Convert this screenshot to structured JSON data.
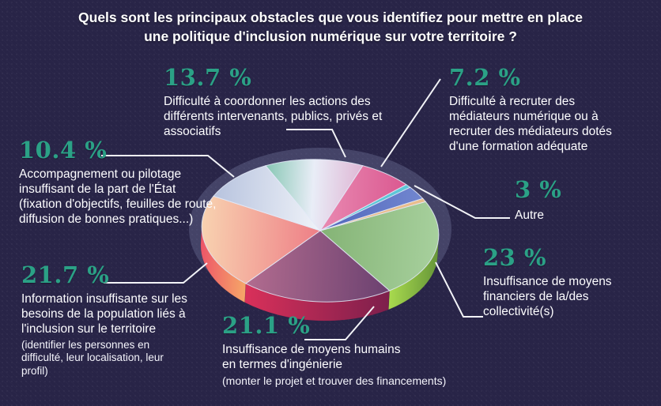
{
  "page": {
    "background_color": "#282447",
    "accent_color": "#2ba186",
    "text_color": "#ffffff",
    "title": "Quels sont les principaux obstacles que vous identifiez pour mettre en place une politique d'inclusion numérique sur votre territoire ?"
  },
  "chart_data": {
    "type": "pie",
    "style": "3d-exploded-callouts",
    "title": "Quels sont les principaux obstacles que vous identifiez pour mettre en place une politique d'inclusion numérique sur votre territoire ?",
    "unit": "%",
    "legend_position": "callout labels around the pie",
    "start_angle_deg": -29,
    "slices": [
      {
        "pct": 23,
        "pct_label": "23 %",
        "label": "Insuffisance de moyens financiers de la/des collectivité(s)",
        "color_top": [
          "#84b375",
          "#a7d09d"
        ],
        "color_side": [
          "#a9da4e",
          "#679739"
        ]
      },
      {
        "pct": 21.1,
        "pct_label": "21.1 %",
        "label": "Insuffisance de moyens humains en termes d'ingénierie",
        "sub": "(monter le projet et trouver des financements)",
        "color_top": [
          "#b26c8f",
          "#6b4170"
        ],
        "color_side": [
          "#d9305a",
          "#7d1f4c"
        ]
      },
      {
        "pct": 21.7,
        "pct_label": "21.7 %",
        "label": "Information insuffisante sur les besoins de la population liés à l'inclusion sur le territoire",
        "sub": "(identifier les personnes en difficulté, leur localisation, leur profil)",
        "color_top": [
          "#f8d2b0",
          "#ee7e86"
        ],
        "color_side": [
          "#ed5568",
          "#f6a768"
        ]
      },
      {
        "pct": 10.4,
        "pct_label": "10.4 %",
        "label": "Accompagnement ou pilotage insuffisant de la part de l'État (fixation d'objectifs, feuilles de route, diffusion de bonnes pratiques...)",
        "color_top": [
          "#b7c3de",
          "#f0f3f9"
        ],
        "color_side": [
          "#9aa6c4",
          "#c7d0e6"
        ]
      },
      {
        "pct": 13.7,
        "pct_label": "13.7 %",
        "label": "Difficulté à coordonner les actions des différents intervenants, publics, privés et associatifs",
        "color_top": [
          "#87c7b4",
          "#e9edf7",
          "#dfb7d5"
        ],
        "color_side": [
          "#6fa898",
          "#c3a0bd"
        ]
      },
      {
        "pct": 7.2,
        "pct_label": "7.2 %",
        "label": "Difficulté à recruter des médiateurs numérique ou à recruter des médiateurs dotés d'une formation adéquate",
        "color_top": [
          "#e989b1",
          "#da5890"
        ],
        "color_side": [
          "#c04a7e",
          "#a83a6c"
        ]
      },
      {
        "pct": 3,
        "pct_label": "3 %",
        "label": "Autre",
        "color_top": [
          "#5066bb",
          "#7287d0"
        ],
        "color_side": [
          "#3f519c",
          "#5b6fb5"
        ]
      }
    ],
    "separators": [
      {
        "after_index": 5,
        "color": "#5ec7d7",
        "width_deg": 2.8
      },
      {
        "after_index": 6,
        "color": "#e9bd8c",
        "width_deg": 2.8
      }
    ]
  }
}
